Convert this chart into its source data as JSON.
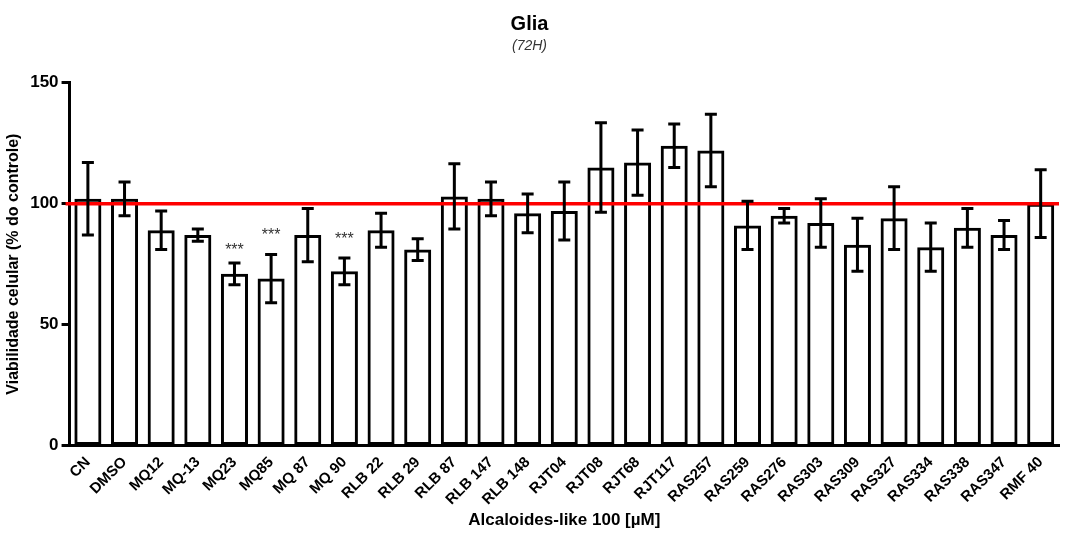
{
  "chart_data": {
    "type": "bar",
    "title": "Glia",
    "subtitle": "(72H)",
    "xlabel": "Alcaloides-like 100 [µM]",
    "ylabel": "Viabilidade celular (% do controle)",
    "categories": [
      "CN",
      "DMSO",
      "MQ12",
      "MQ-13",
      "MQ23",
      "MQ85",
      "MQ 87",
      "MQ 90",
      "RLB 22",
      "RLB 29",
      "RLB 87",
      "RLB 147",
      "RLB 148",
      "RJT04",
      "RJT08",
      "RJT68",
      "RJT117",
      "RAS257",
      "RAS259",
      "RAS276",
      "RAS303",
      "RAS309",
      "RAS327",
      "RAS334",
      "RAS338",
      "RAS347",
      "RMF 40"
    ],
    "values": [
      102,
      102,
      89,
      87,
      71,
      69,
      87,
      72,
      89,
      81,
      103,
      102,
      96,
      97,
      115,
      117,
      124,
      122,
      91,
      95,
      92,
      83,
      94,
      82,
      90,
      87,
      100
    ],
    "errors": [
      15,
      7,
      8,
      2.5,
      4.5,
      10,
      11,
      5.5,
      7,
      4.5,
      13.5,
      7,
      8,
      12,
      18.5,
      13.5,
      9,
      15,
      10,
      3,
      10,
      11,
      13,
      10,
      8,
      6,
      14
    ],
    "color": "#000000",
    "ylim": [
      0,
      150
    ],
    "yticks": [
      0,
      50,
      100,
      150
    ],
    "grid": false,
    "legend": false,
    "ref_lines": [
      {
        "axis": "y",
        "value": 100,
        "color": "#ff0000"
      }
    ],
    "annotations": [
      "***",
      "***",
      "***"
    ]
  }
}
